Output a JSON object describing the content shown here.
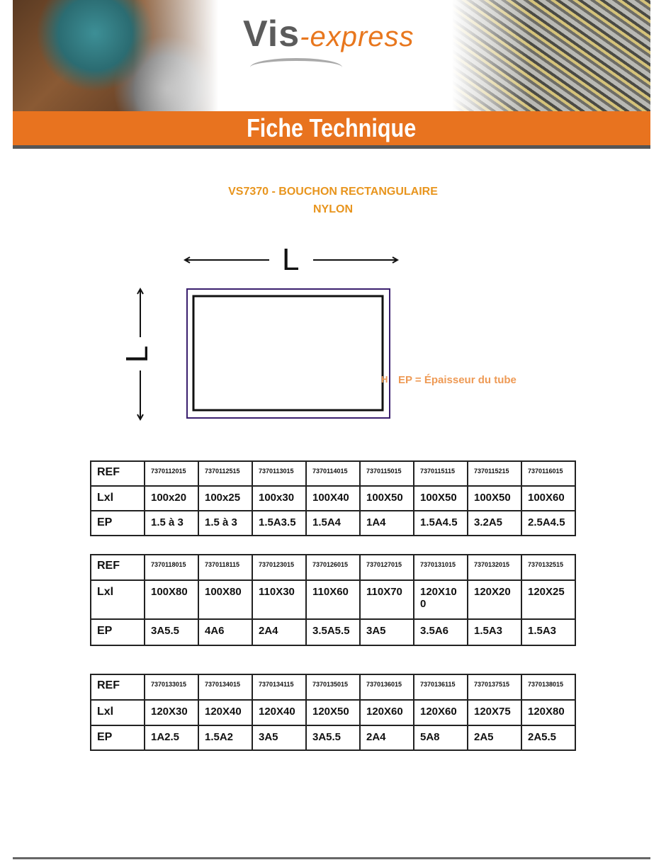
{
  "header": {
    "logo_main": "Vis",
    "logo_suffix": "-express",
    "banner_title": "Fiche Technique",
    "accent_color": "#e8731f"
  },
  "product": {
    "title_line1": "VS7370 - BOUCHON RECTANGULAIRE",
    "title_line2": "NYLON",
    "title_color": "#e8951e"
  },
  "diagram": {
    "length_label": "L",
    "width_label": "L",
    "ep_marker": "H",
    "ep_label": "EP = Épaisseur du tube"
  },
  "tables": [
    {
      "row_labels": [
        "REF",
        "Lxl",
        "EP"
      ],
      "ref": [
        "7370112015",
        "7370112515",
        "7370113015",
        "7370114015",
        "7370115015",
        "7370115115",
        "7370115215",
        "7370116015"
      ],
      "dims": [
        "100x20",
        "100x25",
        "100x30",
        "100X40",
        "100X50",
        "100X50",
        "100X50",
        "100X60"
      ],
      "ep": [
        "1.5 à 3",
        "1.5 à 3",
        "1.5A3.5",
        "1.5A4",
        "1A4",
        "1.5A4.5",
        "3.2A5",
        "2.5A4.5"
      ]
    },
    {
      "row_labels": [
        "REF",
        "Lxl",
        "EP"
      ],
      "ref": [
        "7370118015",
        "7370118115",
        "7370123015",
        "7370126015",
        "7370127015",
        "7370131015",
        "7370132015",
        "7370132515"
      ],
      "dims": [
        "100X80",
        "100X80",
        "110X30",
        "110X60",
        "110X70",
        "120X100",
        "120X20",
        "120X25"
      ],
      "ep": [
        "3A5.5",
        "4A6",
        "2A4",
        "3.5A5.5",
        "3A5",
        "3.5A6",
        "1.5A3",
        "1.5A3"
      ]
    },
    {
      "row_labels": [
        "REF",
        "Lxl",
        "EP"
      ],
      "ref": [
        "7370133015",
        "7370134015",
        "7370134115",
        "7370135015",
        "7370136015",
        "7370136115",
        "7370137515",
        "7370138015"
      ],
      "dims": [
        "120X30",
        "120X40",
        "120X40",
        "120X50",
        "120X60",
        "120X60",
        "120X75",
        "120X80"
      ],
      "ep": [
        "1A2.5",
        "1.5A2",
        "3A5",
        "3A5.5",
        "2A4",
        "5A8",
        "2A5",
        "2A5.5"
      ]
    }
  ]
}
